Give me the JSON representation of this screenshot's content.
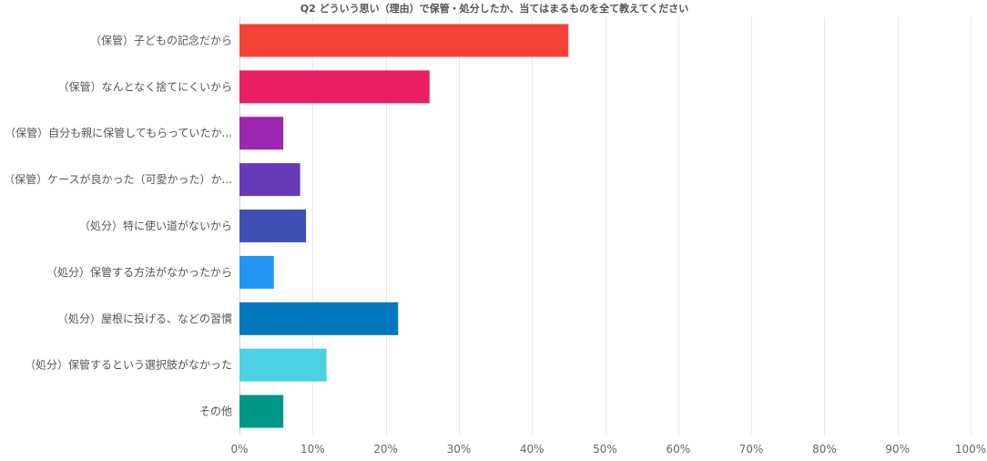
{
  "chart_data": {
    "type": "bar",
    "orientation": "horizontal",
    "title": "Q2 どういう思い（理由）で保管・処分したか、当てはまるものを全て教えてください",
    "xlabel": "",
    "ylabel": "",
    "xlim": [
      0,
      100
    ],
    "grid": true,
    "x_ticks": [
      "0%",
      "10%",
      "20%",
      "30%",
      "40%",
      "50%",
      "60%",
      "70%",
      "80%",
      "90%",
      "100%"
    ],
    "categories": [
      "（保管）子どもの記念だから",
      "（保管）なんとなく捨てにくいから",
      "（保管）自分も親に保管してもらっていたか...",
      "（保管）ケースが良かった（可愛かった）か...",
      "（処分）特に使い道がないから",
      "（処分）保管する方法がなかったから",
      "（処分）屋根に投げる、などの習慣",
      "（処分）保管するという選択肢がなかった",
      "その他"
    ],
    "values": [
      45,
      26,
      6,
      8.3,
      9.1,
      4.7,
      21.7,
      11.9,
      6
    ],
    "colors": [
      "#f44336",
      "#e91e63",
      "#9c27b0",
      "#673ab7",
      "#3f51b5",
      "#2196f3",
      "#0277bd",
      "#4dd0e1",
      "#009688"
    ]
  }
}
